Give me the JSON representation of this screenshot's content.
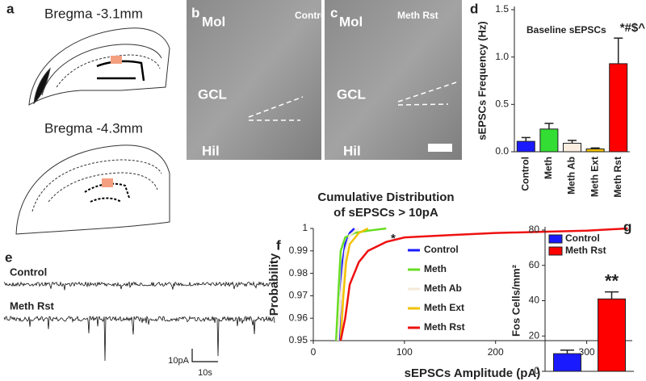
{
  "panel_a": {
    "panel": "a",
    "labels": [
      "Bregma -3.1mm",
      "Bregma -4.3mm"
    ]
  },
  "panel_b": {
    "panel": "b",
    "labels": [
      "Mol",
      "Control",
      "GCL",
      "Hil"
    ]
  },
  "panel_c": {
    "panel": "c",
    "labels": [
      "Mol",
      "Meth Rst",
      "GCL",
      "Hil"
    ]
  },
  "panel_e": {
    "panel": "e",
    "labels": [
      "Control",
      "Meth Rst"
    ],
    "scale_y": "10pA",
    "scale_x": "10s"
  },
  "chart_data": [
    {
      "type": "bar",
      "panel": "d",
      "title": "Baseline sEPSCs",
      "ylabel": "sEPSCs Frequency (Hz)",
      "categories": [
        "Control",
        "Meth",
        "Meth Ab",
        "Meth Ext",
        "Meth Rst"
      ],
      "values": [
        0.11,
        0.24,
        0.09,
        0.03,
        0.93
      ],
      "errors": [
        0.04,
        0.06,
        0.03,
        0.01,
        0.27
      ],
      "colors": [
        "#1a1aff",
        "#33dd33",
        "#fbeee0",
        "#f2c200",
        "#ff0000"
      ],
      "ylim": [
        0,
        1.5
      ],
      "yticks": [
        {
          "value": 0,
          "label": "0.0"
        },
        {
          "value": 0.5,
          "label": "0.5"
        },
        {
          "value": 1,
          "label": "1.0"
        },
        {
          "value": 1.5,
          "label": "1.5"
        }
      ],
      "annotation": "*#$^"
    },
    {
      "type": "line",
      "panel": "f",
      "title": [
        "Cumulative Distribution",
        "of sEPSCs > 10pA"
      ],
      "xlabel": "sEPSCs Amplitude (pA)",
      "ylabel": "Probability",
      "xlim": [
        0,
        350
      ],
      "xticks": [
        0,
        100,
        200,
        300
      ],
      "ylim": [
        0.95,
        1
      ],
      "yticks": [
        0.95,
        0.96,
        0.97,
        0.98,
        0.99,
        1
      ],
      "series": [
        {
          "name": "Control",
          "color": "#1a1aff",
          "x": [
            28,
            30,
            32,
            35,
            40,
            45
          ],
          "values": [
            0.95,
            0.97,
            0.985,
            0.993,
            0.998,
            1
          ]
        },
        {
          "name": "Meth",
          "color": "#66dd22",
          "x": [
            25,
            28,
            30,
            35,
            45,
            60,
            80
          ],
          "values": [
            0.95,
            0.975,
            0.99,
            0.996,
            0.998,
            0.999,
            1
          ]
        },
        {
          "name": "Meth Ab",
          "color": "#f6ead8",
          "x": [
            27,
            30,
            35,
            40,
            50
          ],
          "values": [
            0.95,
            0.97,
            0.99,
            0.997,
            1
          ]
        },
        {
          "name": "Meth Ext",
          "color": "#f2c200",
          "x": [
            30,
            33,
            36,
            40,
            50,
            60
          ],
          "values": [
            0.95,
            0.97,
            0.985,
            0.993,
            0.998,
            1
          ]
        },
        {
          "name": "Meth Rst",
          "color": "#ee1111",
          "x": [
            30,
            35,
            40,
            50,
            60,
            80,
            100,
            150,
            200,
            300,
            345
          ],
          "values": [
            0.95,
            0.96,
            0.975,
            0.985,
            0.99,
            0.994,
            0.996,
            0.997,
            0.998,
            0.999,
            1
          ]
        }
      ],
      "annotation": "*"
    },
    {
      "type": "bar",
      "panel": "g",
      "ylabel": "Fos Cells/mm²",
      "categories": [
        "Control",
        "Meth Rst"
      ],
      "values": [
        10,
        41
      ],
      "errors": [
        2,
        4
      ],
      "colors": [
        "#1a1aff",
        "#ff0000"
      ],
      "ylim": [
        0,
        80
      ],
      "yticks": [
        0,
        20,
        40,
        60,
        80
      ],
      "legend": true,
      "annotation": "**"
    }
  ]
}
